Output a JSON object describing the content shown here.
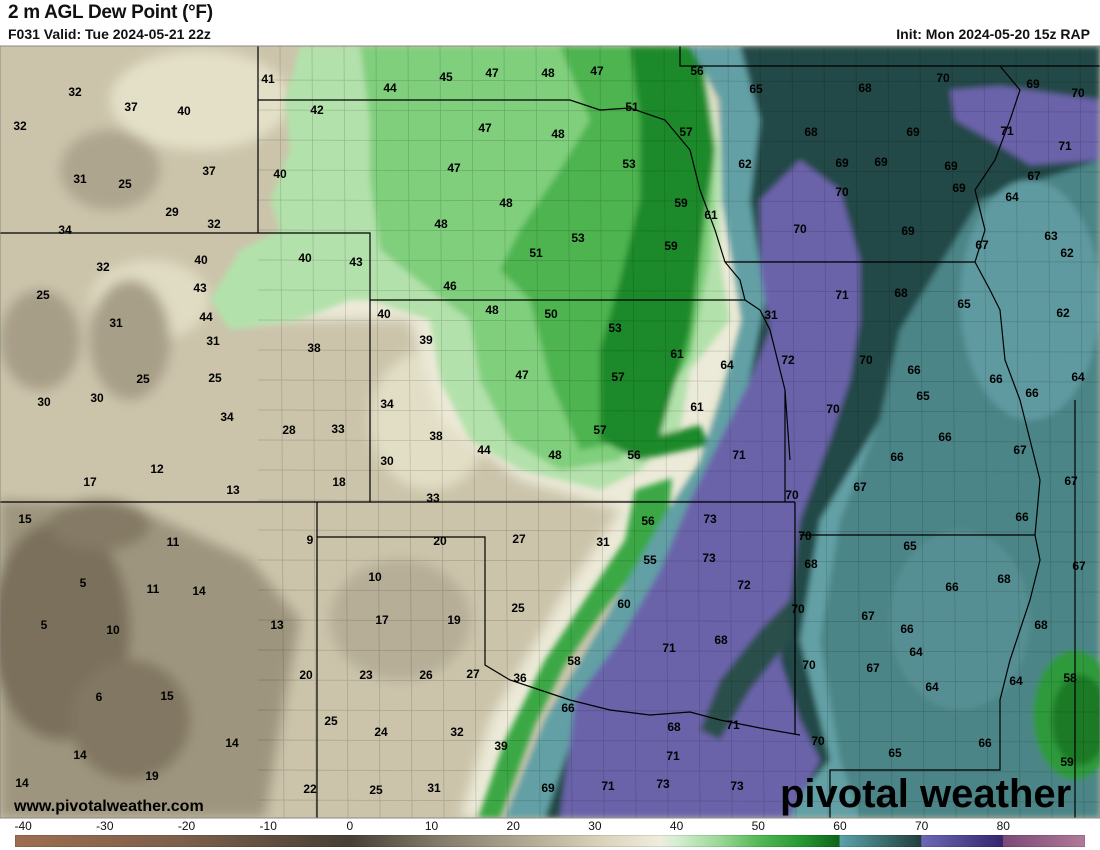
{
  "header": {
    "title": "2 m AGL Dew Point (°F)",
    "valid": "F031 Valid: Tue 2024-05-21 22z",
    "init": "Init: Mon 2024-05-20 15z RAP"
  },
  "watermark": {
    "site": "www.pivotalweather.com",
    "logo": "pivotal weather"
  },
  "colorbar": {
    "ticks": [
      "-40",
      "-30",
      "-20",
      "-10",
      "0",
      "10",
      "20",
      "30",
      "40",
      "50",
      "60",
      "70",
      "80"
    ],
    "range": [
      -41,
      90
    ],
    "stops": [
      {
        "value": -40,
        "color": "#9b6d50"
      },
      {
        "value": -20,
        "color": "#7b5f4a"
      },
      {
        "value": 0,
        "color": "#463f35"
      },
      {
        "value": 10,
        "color": "#7d7766"
      },
      {
        "value": 20,
        "color": "#aaa28c"
      },
      {
        "value": 30,
        "color": "#d6d0b6"
      },
      {
        "value": 38,
        "color": "#efedde"
      },
      {
        "value": 40,
        "color": "#d4eed0"
      },
      {
        "value": 45,
        "color": "#9ed99a"
      },
      {
        "value": 50,
        "color": "#55b955"
      },
      {
        "value": 55,
        "color": "#279a34"
      },
      {
        "value": 59.9,
        "color": "#0d6418"
      },
      {
        "value": 60,
        "color": "#5aa2aa"
      },
      {
        "value": 69.9,
        "color": "#213f3c"
      },
      {
        "value": 70,
        "color": "#6c68b6"
      },
      {
        "value": 79.9,
        "color": "#35256f"
      },
      {
        "value": 80,
        "color": "#7a4978"
      },
      {
        "value": 90,
        "color": "#b27a98"
      }
    ]
  },
  "map_colors": {
    "dry_tan": "#cbc4ab",
    "dark_brown": "#8f866f",
    "cream": "#e9e6d0",
    "green_light": "#b3e1ab",
    "green_mid": "#80cf7d",
    "green": "#4db44f",
    "green_dark": "#1d8a2b",
    "teal_light": "#62a0a5",
    "teal_dark": "#244a46",
    "teal_mid": "#4c8587",
    "purple": "#6a63aa",
    "border": "#000000"
  },
  "map_labels": [
    32,
    37,
    40,
    32,
    37,
    31,
    25,
    29,
    32,
    34,
    41,
    44,
    45,
    47,
    48,
    47,
    56,
    65,
    68,
    70,
    69,
    70,
    42,
    47,
    48,
    51,
    57,
    68,
    69,
    71,
    71,
    40,
    47,
    53,
    62,
    69,
    69,
    69,
    67,
    69,
    70,
    64,
    48,
    59,
    61,
    48,
    53,
    70,
    69,
    63,
    67,
    51,
    59,
    62,
    32,
    40,
    40,
    43,
    25,
    43,
    46,
    71,
    68,
    44,
    40,
    48,
    50,
    31,
    65,
    62,
    31,
    31,
    39,
    53,
    38,
    61,
    64,
    72,
    70,
    66,
    66,
    64,
    25,
    25,
    47,
    57,
    65,
    66,
    30,
    30,
    34,
    61,
    70,
    34,
    28,
    33,
    38,
    57,
    66,
    67,
    44,
    48,
    56,
    71,
    66,
    30,
    12,
    17,
    13,
    18,
    67,
    67,
    70,
    33,
    15,
    56,
    73,
    66,
    9,
    20,
    27,
    31,
    70,
    65,
    11,
    55,
    73,
    68,
    67,
    10,
    5,
    11,
    14,
    72,
    66,
    68,
    25,
    60,
    70,
    67,
    5,
    10,
    17,
    19,
    13,
    66,
    68,
    71,
    68,
    64,
    58,
    70,
    67,
    20,
    23,
    26,
    27,
    36,
    64,
    64,
    58,
    6,
    15,
    66,
    25,
    24,
    32,
    68,
    71,
    14,
    14,
    39,
    70,
    66,
    71,
    65,
    19,
    59,
    14,
    69,
    71,
    73,
    73,
    22,
    25,
    31
  ]
}
